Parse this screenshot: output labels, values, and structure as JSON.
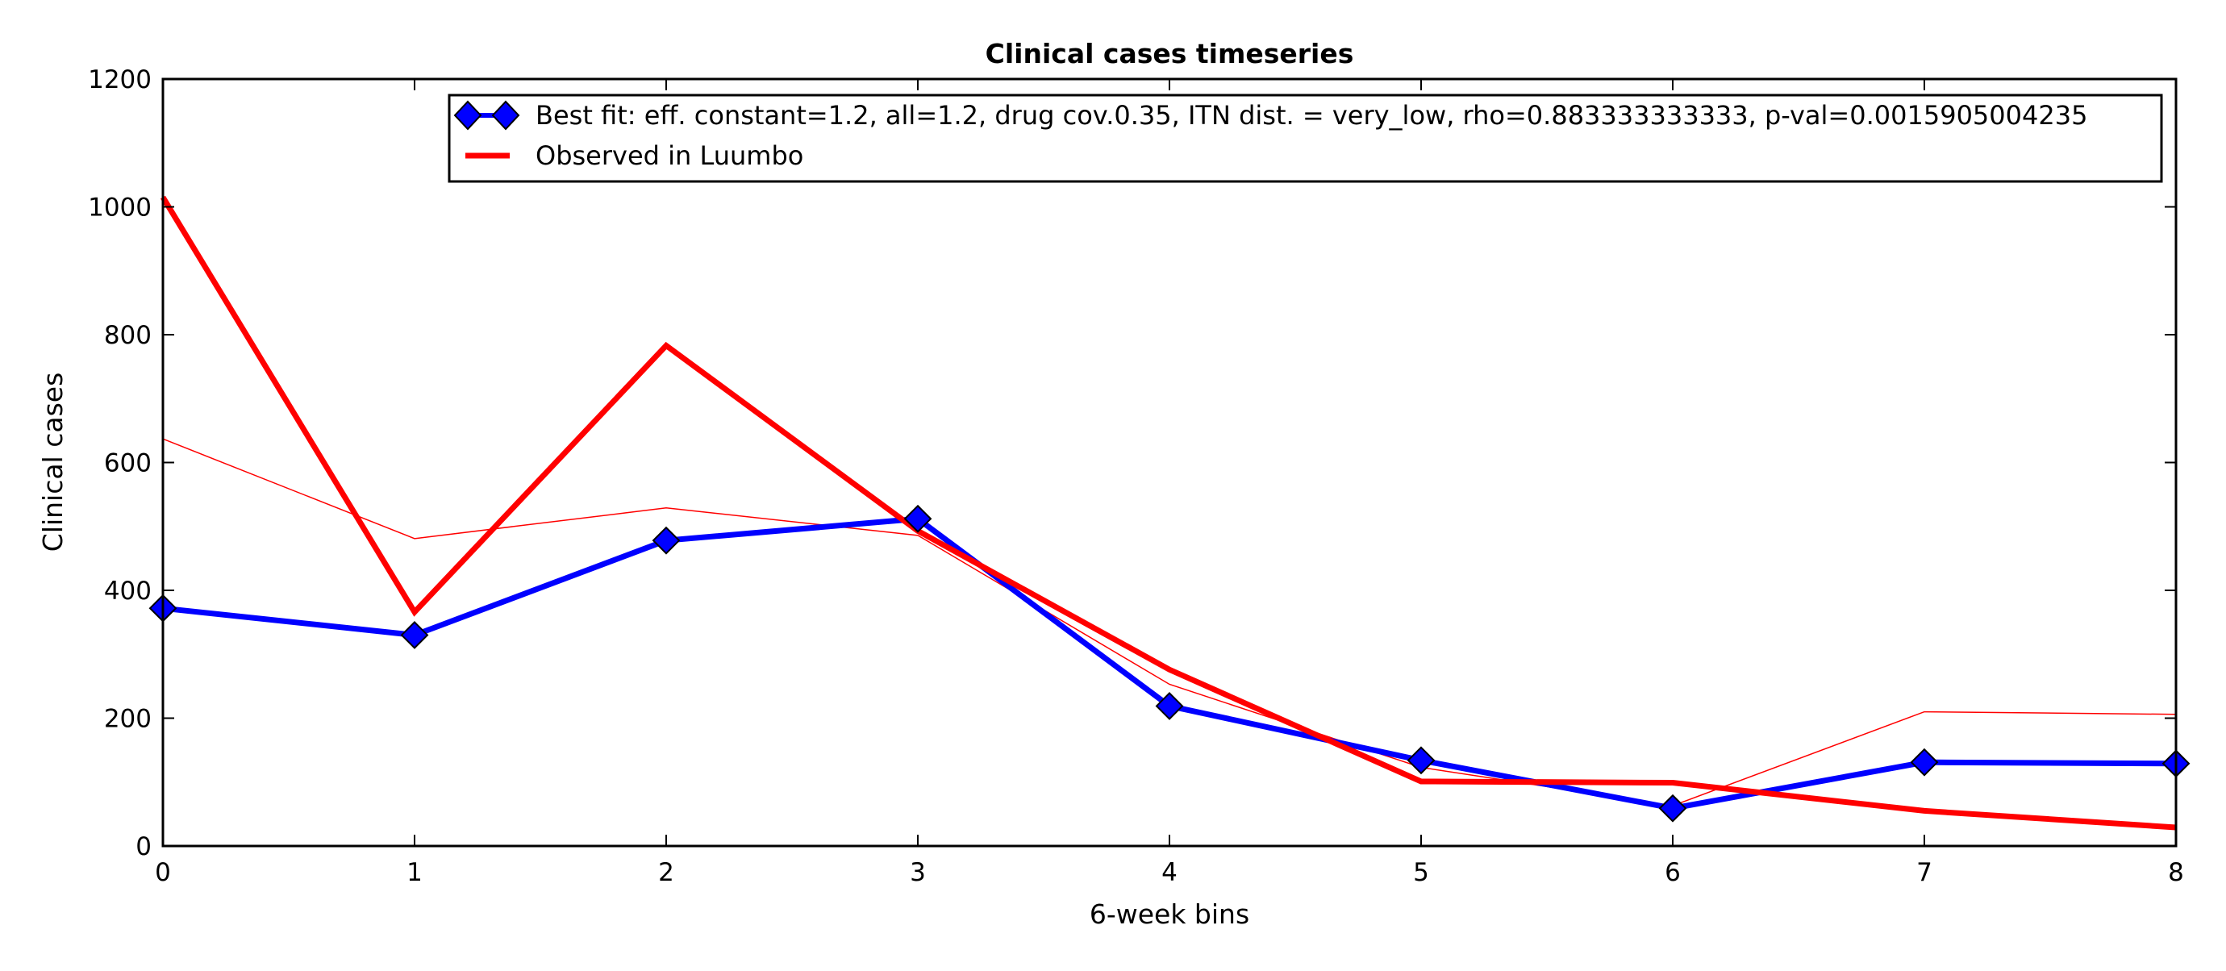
{
  "chart_data": {
    "type": "line",
    "title": "Clinical cases timeseries",
    "xlabel": "6-week bins",
    "ylabel": "Clinical cases",
    "xlim": [
      0,
      8
    ],
    "ylim": [
      0,
      1200
    ],
    "x_ticks": [
      "0",
      "1",
      "2",
      "3",
      "4",
      "5",
      "6",
      "7",
      "8"
    ],
    "y_ticks": [
      "0",
      "200",
      "400",
      "600",
      "800",
      "1000",
      "1200"
    ],
    "grid": false,
    "legend_position": "top-right",
    "x": [
      0,
      1,
      2,
      3,
      4,
      5,
      6,
      7,
      8
    ],
    "series": [
      {
        "name": "Best fit: eff. constant=1.2, all=1.2, drug cov.0.35, ITN dist. = very_low, rho=0.883333333333, p-val=0.0015905004235",
        "color": "#0000ff",
        "marker": "diamond",
        "in_legend": true,
        "values": [
          372,
          330,
          478,
          512,
          219,
          134,
          59,
          131,
          129
        ]
      },
      {
        "name": "Observed in Luumbo",
        "color": "#ff0000",
        "marker": "none",
        "in_legend": true,
        "values": [
          1015,
          366,
          783,
          493,
          276,
          101,
          99,
          55,
          29
        ]
      },
      {
        "color": "#ff0000",
        "marker": "none",
        "in_legend": false,
        "thin": true,
        "values": [
          637,
          481,
          529,
          486,
          253,
          123,
          63,
          210,
          206
        ]
      }
    ]
  }
}
